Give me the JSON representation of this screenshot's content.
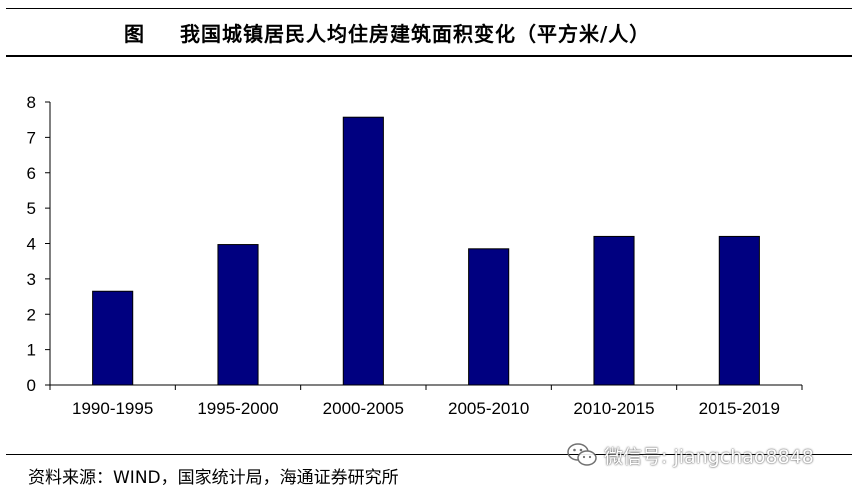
{
  "header": {
    "figure_label": "图",
    "title": "我国城镇居民人均住房建筑面积变化（平方米/人）"
  },
  "footer": {
    "source": "资料来源：WIND，国家统计局，海通证券研究所"
  },
  "watermark": {
    "text": "微信号: jiangchao8848",
    "icon": "wechat-icon"
  },
  "colors": {
    "bar": "#000080",
    "axis": "#000000"
  },
  "chart_data": {
    "type": "bar",
    "title": "我国城镇居民人均住房建筑面积变化（平方米/人）",
    "categories": [
      "1990-1995",
      "1995-2000",
      "2000-2005",
      "2005-2010",
      "2010-2015",
      "2015-2019"
    ],
    "values": [
      2.65,
      3.97,
      7.57,
      3.85,
      4.2,
      4.2
    ],
    "ylim": [
      0,
      8
    ],
    "yticks": [
      0,
      1,
      2,
      3,
      4,
      5,
      6,
      7,
      8
    ],
    "xlabel": "",
    "ylabel": "",
    "grid": false,
    "legend": "none"
  }
}
